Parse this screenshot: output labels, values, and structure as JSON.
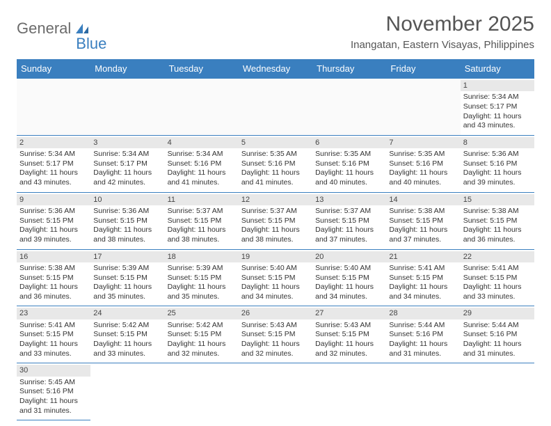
{
  "logo": {
    "text1": "General",
    "text2": "Blue"
  },
  "title": "November 2025",
  "location": "Inangatan, Eastern Visayas, Philippines",
  "colors": {
    "header_bg": "#3a7fbf",
    "header_text": "#ffffff",
    "daynum_bg": "#e8e8e8",
    "border": "#3a7fbf",
    "text": "#333333",
    "logo_gray": "#6b6b6b",
    "logo_blue": "#3a7fbf"
  },
  "weekdays": [
    "Sunday",
    "Monday",
    "Tuesday",
    "Wednesday",
    "Thursday",
    "Friday",
    "Saturday"
  ],
  "first_weekday_index": 6,
  "days": [
    {
      "n": 1,
      "sunrise": "5:34 AM",
      "sunset": "5:17 PM",
      "daylight": "11 hours and 43 minutes."
    },
    {
      "n": 2,
      "sunrise": "5:34 AM",
      "sunset": "5:17 PM",
      "daylight": "11 hours and 43 minutes."
    },
    {
      "n": 3,
      "sunrise": "5:34 AM",
      "sunset": "5:17 PM",
      "daylight": "11 hours and 42 minutes."
    },
    {
      "n": 4,
      "sunrise": "5:34 AM",
      "sunset": "5:16 PM",
      "daylight": "11 hours and 41 minutes."
    },
    {
      "n": 5,
      "sunrise": "5:35 AM",
      "sunset": "5:16 PM",
      "daylight": "11 hours and 41 minutes."
    },
    {
      "n": 6,
      "sunrise": "5:35 AM",
      "sunset": "5:16 PM",
      "daylight": "11 hours and 40 minutes."
    },
    {
      "n": 7,
      "sunrise": "5:35 AM",
      "sunset": "5:16 PM",
      "daylight": "11 hours and 40 minutes."
    },
    {
      "n": 8,
      "sunrise": "5:36 AM",
      "sunset": "5:16 PM",
      "daylight": "11 hours and 39 minutes."
    },
    {
      "n": 9,
      "sunrise": "5:36 AM",
      "sunset": "5:15 PM",
      "daylight": "11 hours and 39 minutes."
    },
    {
      "n": 10,
      "sunrise": "5:36 AM",
      "sunset": "5:15 PM",
      "daylight": "11 hours and 38 minutes."
    },
    {
      "n": 11,
      "sunrise": "5:37 AM",
      "sunset": "5:15 PM",
      "daylight": "11 hours and 38 minutes."
    },
    {
      "n": 12,
      "sunrise": "5:37 AM",
      "sunset": "5:15 PM",
      "daylight": "11 hours and 38 minutes."
    },
    {
      "n": 13,
      "sunrise": "5:37 AM",
      "sunset": "5:15 PM",
      "daylight": "11 hours and 37 minutes."
    },
    {
      "n": 14,
      "sunrise": "5:38 AM",
      "sunset": "5:15 PM",
      "daylight": "11 hours and 37 minutes."
    },
    {
      "n": 15,
      "sunrise": "5:38 AM",
      "sunset": "5:15 PM",
      "daylight": "11 hours and 36 minutes."
    },
    {
      "n": 16,
      "sunrise": "5:38 AM",
      "sunset": "5:15 PM",
      "daylight": "11 hours and 36 minutes."
    },
    {
      "n": 17,
      "sunrise": "5:39 AM",
      "sunset": "5:15 PM",
      "daylight": "11 hours and 35 minutes."
    },
    {
      "n": 18,
      "sunrise": "5:39 AM",
      "sunset": "5:15 PM",
      "daylight": "11 hours and 35 minutes."
    },
    {
      "n": 19,
      "sunrise": "5:40 AM",
      "sunset": "5:15 PM",
      "daylight": "11 hours and 34 minutes."
    },
    {
      "n": 20,
      "sunrise": "5:40 AM",
      "sunset": "5:15 PM",
      "daylight": "11 hours and 34 minutes."
    },
    {
      "n": 21,
      "sunrise": "5:41 AM",
      "sunset": "5:15 PM",
      "daylight": "11 hours and 34 minutes."
    },
    {
      "n": 22,
      "sunrise": "5:41 AM",
      "sunset": "5:15 PM",
      "daylight": "11 hours and 33 minutes."
    },
    {
      "n": 23,
      "sunrise": "5:41 AM",
      "sunset": "5:15 PM",
      "daylight": "11 hours and 33 minutes."
    },
    {
      "n": 24,
      "sunrise": "5:42 AM",
      "sunset": "5:15 PM",
      "daylight": "11 hours and 33 minutes."
    },
    {
      "n": 25,
      "sunrise": "5:42 AM",
      "sunset": "5:15 PM",
      "daylight": "11 hours and 32 minutes."
    },
    {
      "n": 26,
      "sunrise": "5:43 AM",
      "sunset": "5:15 PM",
      "daylight": "11 hours and 32 minutes."
    },
    {
      "n": 27,
      "sunrise": "5:43 AM",
      "sunset": "5:15 PM",
      "daylight": "11 hours and 32 minutes."
    },
    {
      "n": 28,
      "sunrise": "5:44 AM",
      "sunset": "5:16 PM",
      "daylight": "11 hours and 31 minutes."
    },
    {
      "n": 29,
      "sunrise": "5:44 AM",
      "sunset": "5:16 PM",
      "daylight": "11 hours and 31 minutes."
    },
    {
      "n": 30,
      "sunrise": "5:45 AM",
      "sunset": "5:16 PM",
      "daylight": "11 hours and 31 minutes."
    }
  ],
  "labels": {
    "sunrise": "Sunrise:",
    "sunset": "Sunset:",
    "daylight": "Daylight:"
  }
}
